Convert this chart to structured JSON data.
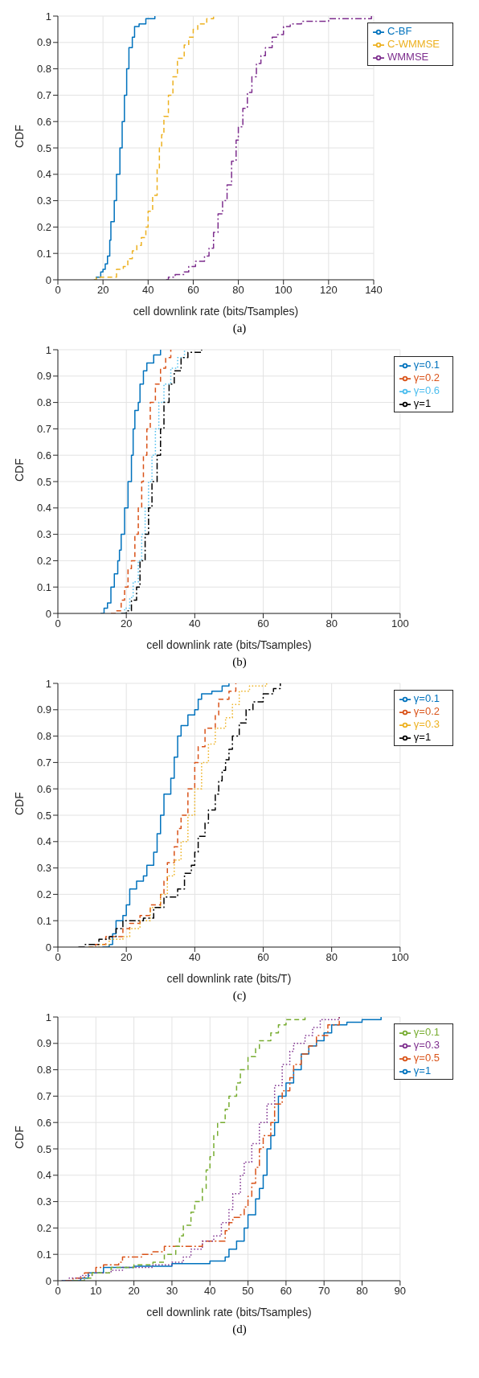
{
  "chart_data": [
    {
      "type": "step",
      "xlabel": "cell downlink rate (bits/Tsamples)",
      "ylabel": "CDF",
      "annotations": [
        "(a)"
      ],
      "xlim": [
        0,
        140
      ],
      "xticks": [
        0,
        20,
        40,
        60,
        80,
        100,
        120,
        140
      ],
      "ylim": [
        0,
        1
      ],
      "yticks": [
        0,
        0.1,
        0.2,
        0.3,
        0.4,
        0.5,
        0.6,
        0.7,
        0.8,
        0.9,
        1
      ],
      "grid": true,
      "legend": "top right",
      "marker": "none",
      "series": [
        {
          "name": "C-BF",
          "color": "#0072bd",
          "line_style": "solid",
          "x": [
            16,
            17,
            19,
            20,
            21,
            22,
            23,
            23.5,
            25,
            26,
            27.5,
            28.5,
            29.5,
            30.5,
            31.5,
            33,
            34,
            36,
            39,
            43
          ],
          "values": [
            0,
            0.01,
            0.03,
            0.04,
            0.06,
            0.09,
            0.15,
            0.22,
            0.3,
            0.4,
            0.5,
            0.6,
            0.7,
            0.8,
            0.88,
            0.92,
            0.96,
            0.97,
            0.99,
            1
          ]
        },
        {
          "name": "C-WMMSE",
          "color": "#edb120",
          "line_style": "dashed",
          "x": [
            16,
            17,
            25,
            26,
            29,
            31,
            33,
            35,
            37,
            39,
            40,
            42,
            44,
            45,
            46,
            47,
            49,
            51,
            53,
            56,
            58,
            60,
            62,
            66,
            69
          ],
          "values": [
            0,
            0.01,
            0.01,
            0.04,
            0.05,
            0.08,
            0.11,
            0.13,
            0.16,
            0.2,
            0.26,
            0.32,
            0.42,
            0.5,
            0.55,
            0.62,
            0.7,
            0.77,
            0.84,
            0.89,
            0.92,
            0.95,
            0.97,
            0.99,
            1
          ]
        },
        {
          "name": "WMMSE",
          "color": "#7e2f8e",
          "line_style": "dashdot",
          "x": [
            48,
            49,
            52,
            56,
            58,
            61,
            65,
            67,
            69,
            71,
            73,
            75,
            77,
            79,
            80,
            82,
            84,
            86,
            88,
            90,
            92,
            95,
            97,
            100,
            103,
            108,
            120,
            139
          ],
          "values": [
            0,
            0.01,
            0.02,
            0.03,
            0.05,
            0.07,
            0.09,
            0.12,
            0.18,
            0.25,
            0.3,
            0.36,
            0.45,
            0.53,
            0.58,
            0.65,
            0.71,
            0.77,
            0.82,
            0.85,
            0.88,
            0.92,
            0.93,
            0.96,
            0.97,
            0.98,
            0.99,
            1
          ]
        }
      ]
    },
    {
      "type": "step",
      "xlabel": "cell downlink rate (bits/Tsamples)",
      "ylabel": "CDF",
      "annotations": [
        "(b)"
      ],
      "xlim": [
        0,
        100
      ],
      "xticks": [
        0,
        20,
        40,
        60,
        80,
        100
      ],
      "ylim": [
        0,
        1
      ],
      "yticks": [
        0,
        0.1,
        0.2,
        0.3,
        0.4,
        0.5,
        0.6,
        0.7,
        0.8,
        0.9,
        1
      ],
      "grid": true,
      "legend": "top right",
      "marker": "none",
      "series": [
        {
          "name": "γ=0.1",
          "color": "#0072bd",
          "line_style": "solid",
          "x": [
            12.5,
            13.5,
            14.5,
            15.5,
            16.5,
            17.5,
            18,
            18.5,
            19.5,
            20.5,
            21.5,
            22,
            22.5,
            23.5,
            24,
            25,
            26,
            28,
            30
          ],
          "values": [
            0,
            0.02,
            0.04,
            0.1,
            0.15,
            0.2,
            0.24,
            0.3,
            0.4,
            0.5,
            0.6,
            0.7,
            0.77,
            0.8,
            0.87,
            0.92,
            0.95,
            0.98,
            1
          ]
        },
        {
          "name": "γ=0.2",
          "color": "#d95319",
          "line_style": "dashed",
          "x": [
            15.5,
            17,
            18.5,
            19.5,
            20.5,
            21.5,
            22.5,
            23.5,
            24.5,
            25,
            26,
            27,
            28.5,
            30,
            31.5,
            33
          ],
          "values": [
            0,
            0.01,
            0.05,
            0.1,
            0.17,
            0.2,
            0.3,
            0.4,
            0.5,
            0.6,
            0.7,
            0.8,
            0.87,
            0.93,
            0.97,
            1
          ]
        },
        {
          "name": "γ=0.6",
          "color": "#4dbeee",
          "line_style": "dotted",
          "x": [
            18.5,
            19.5,
            21,
            22,
            23.5,
            24.5,
            25.5,
            26.5,
            27.5,
            28.5,
            29.5,
            31,
            33,
            35,
            37
          ],
          "values": [
            0,
            0.02,
            0.06,
            0.12,
            0.2,
            0.3,
            0.4,
            0.5,
            0.6,
            0.7,
            0.8,
            0.87,
            0.93,
            0.97,
            1
          ]
        },
        {
          "name": "γ=1",
          "color": "#000000",
          "line_style": "dashdot",
          "x": [
            18.5,
            20,
            21.5,
            23,
            24,
            25.5,
            26.5,
            27.5,
            29,
            30,
            31,
            32.5,
            34,
            36,
            38,
            42
          ],
          "values": [
            0,
            0.01,
            0.05,
            0.1,
            0.2,
            0.3,
            0.4,
            0.5,
            0.6,
            0.7,
            0.8,
            0.87,
            0.92,
            0.97,
            0.99,
            1
          ]
        }
      ]
    },
    {
      "type": "step",
      "xlabel": "cell downlink rate (bits/T)",
      "ylabel": "CDF",
      "annotations": [
        "(c)"
      ],
      "xlim": [
        0,
        100
      ],
      "xticks": [
        0,
        20,
        40,
        60,
        80,
        100
      ],
      "ylim": [
        0,
        1
      ],
      "yticks": [
        0,
        0.1,
        0.2,
        0.3,
        0.4,
        0.5,
        0.6,
        0.7,
        0.8,
        0.9,
        1
      ],
      "grid": true,
      "legend": "top right",
      "marker": "none",
      "series": [
        {
          "name": "γ=0.1",
          "color": "#0072bd",
          "line_style": "solid",
          "x": [
            13,
            15,
            16,
            17,
            19,
            20,
            21,
            23,
            25,
            26,
            28,
            29,
            30,
            31,
            33,
            34,
            35,
            36,
            38,
            40,
            41,
            42,
            45,
            48,
            50
          ],
          "values": [
            0,
            0.01,
            0.05,
            0.1,
            0.12,
            0.16,
            0.22,
            0.25,
            0.27,
            0.31,
            0.36,
            0.43,
            0.5,
            0.58,
            0.64,
            0.72,
            0.8,
            0.84,
            0.88,
            0.9,
            0.94,
            0.96,
            0.97,
            0.99,
            1
          ]
        },
        {
          "name": "γ=0.2",
          "color": "#d95319",
          "line_style": "dashed",
          "x": [
            9,
            11,
            14,
            18,
            19,
            21,
            24,
            27,
            30,
            31,
            32,
            34,
            35,
            36,
            38,
            40,
            41,
            43,
            46,
            47,
            50,
            52
          ],
          "values": [
            0,
            0.01,
            0.04,
            0.04,
            0.07,
            0.09,
            0.12,
            0.16,
            0.2,
            0.25,
            0.32,
            0.38,
            0.45,
            0.5,
            0.6,
            0.7,
            0.76,
            0.83,
            0.88,
            0.94,
            0.97,
            1
          ]
        },
        {
          "name": "γ=0.3",
          "color": "#edb120",
          "line_style": "dotted",
          "x": [
            9,
            12,
            15,
            19,
            21,
            24,
            27,
            30,
            32,
            34,
            36,
            38,
            40,
            42,
            44,
            46,
            49,
            51,
            53,
            56,
            61
          ],
          "values": [
            0,
            0.01,
            0.03,
            0.04,
            0.07,
            0.1,
            0.15,
            0.2,
            0.27,
            0.33,
            0.4,
            0.5,
            0.6,
            0.7,
            0.77,
            0.83,
            0.87,
            0.92,
            0.97,
            0.99,
            1
          ]
        },
        {
          "name": "γ=1",
          "color": "#000000",
          "line_style": "dashdot",
          "x": [
            6,
            8,
            12,
            15,
            17,
            19,
            25,
            28,
            31,
            35,
            37,
            39,
            40,
            41,
            43,
            44,
            46,
            47,
            48,
            49,
            50,
            51,
            53,
            55,
            57,
            60,
            63,
            65
          ],
          "values": [
            0,
            0.01,
            0.03,
            0.04,
            0.07,
            0.1,
            0.11,
            0.15,
            0.19,
            0.22,
            0.28,
            0.31,
            0.36,
            0.42,
            0.47,
            0.52,
            0.58,
            0.63,
            0.67,
            0.71,
            0.75,
            0.8,
            0.85,
            0.9,
            0.93,
            0.96,
            0.98,
            1
          ]
        }
      ]
    },
    {
      "type": "step",
      "xlabel": "cell downlink rate (bits/Tsamples)",
      "ylabel": "CDF",
      "annotations": [
        "(d)"
      ],
      "xlim": [
        0,
        90
      ],
      "xticks": [
        0,
        10,
        20,
        30,
        40,
        50,
        60,
        70,
        80,
        90
      ],
      "ylim": [
        0,
        1
      ],
      "yticks": [
        0,
        0.1,
        0.2,
        0.3,
        0.4,
        0.5,
        0.6,
        0.7,
        0.8,
        0.9,
        1
      ],
      "grid": true,
      "legend": "top right",
      "marker": "none",
      "series": [
        {
          "name": "γ=1",
          "color": "#0072bd",
          "line_style": "solid",
          "x": [
            1,
            6,
            8,
            12,
            20,
            30,
            40,
            44,
            45,
            47,
            49,
            50,
            52,
            53,
            54,
            55,
            56,
            57,
            58,
            60,
            62,
            64,
            66,
            68,
            70,
            72,
            76,
            80,
            85
          ],
          "values": [
            0,
            0.01,
            0.03,
            0.05,
            0.055,
            0.065,
            0.075,
            0.09,
            0.12,
            0.15,
            0.2,
            0.25,
            0.31,
            0.35,
            0.4,
            0.5,
            0.55,
            0.6,
            0.7,
            0.75,
            0.8,
            0.86,
            0.89,
            0.91,
            0.94,
            0.97,
            0.98,
            0.99,
            1
          ]
        },
        {
          "name": "γ=0.5",
          "color": "#d95319",
          "line_style": "dashdot",
          "x": [
            2,
            4,
            7,
            10,
            12,
            16,
            17,
            22,
            25,
            28,
            34,
            38,
            42,
            44,
            45,
            46,
            48,
            49,
            50,
            51,
            52,
            53,
            54,
            56,
            57,
            59,
            61,
            62,
            64,
            66,
            68,
            71,
            74
          ],
          "values": [
            0,
            0.01,
            0.03,
            0.05,
            0.06,
            0.07,
            0.09,
            0.1,
            0.11,
            0.13,
            0.13,
            0.15,
            0.15,
            0.19,
            0.22,
            0.24,
            0.25,
            0.28,
            0.32,
            0.37,
            0.43,
            0.5,
            0.55,
            0.6,
            0.67,
            0.72,
            0.77,
            0.82,
            0.86,
            0.89,
            0.93,
            0.97,
            1
          ]
        },
        {
          "name": "γ=0.3",
          "color": "#7e2f8e",
          "line_style": "dotted",
          "x": [
            1,
            3,
            6,
            9,
            14,
            17,
            25,
            30,
            33,
            35,
            38,
            41,
            43,
            45,
            46,
            48,
            49,
            51,
            53,
            55,
            57,
            59,
            61,
            62,
            65,
            67,
            69,
            74
          ],
          "values": [
            0,
            0.01,
            0.02,
            0.03,
            0.04,
            0.05,
            0.06,
            0.07,
            0.09,
            0.12,
            0.15,
            0.17,
            0.22,
            0.27,
            0.33,
            0.4,
            0.45,
            0.52,
            0.6,
            0.67,
            0.74,
            0.82,
            0.87,
            0.9,
            0.93,
            0.96,
            0.99,
            1
          ]
        },
        {
          "name": "γ=0.1",
          "color": "#77ac30",
          "line_style": "dashed",
          "x": [
            4,
            7,
            9,
            14,
            20,
            25,
            28,
            31,
            32,
            33,
            35,
            36,
            38,
            39,
            40,
            41,
            42,
            44,
            45,
            47,
            48,
            50,
            52,
            53,
            56,
            58,
            60,
            65
          ],
          "values": [
            0,
            0.01,
            0.03,
            0.05,
            0.06,
            0.07,
            0.1,
            0.13,
            0.17,
            0.21,
            0.26,
            0.3,
            0.35,
            0.42,
            0.47,
            0.55,
            0.6,
            0.65,
            0.7,
            0.75,
            0.8,
            0.85,
            0.88,
            0.91,
            0.94,
            0.97,
            0.99,
            1
          ]
        }
      ]
    }
  ]
}
